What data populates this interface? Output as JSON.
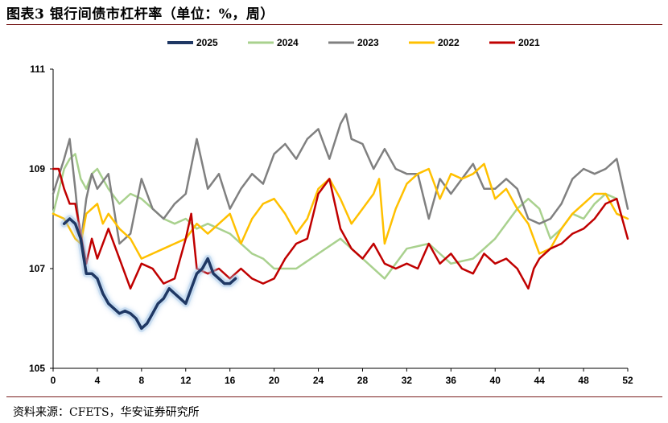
{
  "title": "图表3  银行间债市杠杆率（单位：%，周）",
  "source": "资料来源：CFETS，华安证券研究所",
  "chart_data": {
    "type": "line",
    "title": "图表3  银行间债市杠杆率（单位：%，周）",
    "xlabel": "",
    "ylabel": "",
    "xlim": [
      0,
      52
    ],
    "ylim": [
      105,
      111
    ],
    "x_ticks": [
      0,
      4,
      8,
      12,
      16,
      20,
      24,
      28,
      32,
      36,
      40,
      44,
      48,
      52
    ],
    "y_ticks": [
      105,
      107,
      109,
      111
    ],
    "grid": false,
    "legend_position": "top",
    "series": [
      {
        "name": "2025",
        "color": "#1f3864",
        "x": [
          1,
          1.5,
          2,
          2.5,
          3,
          3.5,
          4,
          4.5,
          5,
          5.5,
          6,
          6.5,
          7,
          7.5,
          8,
          8.5,
          9,
          9.5,
          10,
          10.5,
          11,
          11.5,
          12,
          12.5,
          13,
          13.5,
          14,
          14.5,
          15,
          15.5,
          16,
          16.5
        ],
        "y": [
          107.9,
          108.0,
          107.9,
          107.6,
          106.9,
          106.9,
          106.8,
          106.5,
          106.3,
          106.2,
          106.1,
          106.15,
          106.1,
          106.0,
          105.8,
          105.9,
          106.1,
          106.3,
          106.4,
          106.6,
          106.5,
          106.4,
          106.3,
          106.6,
          106.9,
          107.0,
          107.2,
          106.9,
          106.8,
          106.7,
          106.7,
          106.8
        ]
      },
      {
        "name": "2024",
        "color": "#a9d18e",
        "x": [
          0,
          1,
          1.5,
          2,
          2.5,
          3,
          3.5,
          4,
          5,
          6,
          7,
          8,
          9,
          10,
          11,
          12,
          13,
          14,
          15,
          16,
          17,
          18,
          19,
          20,
          22,
          24,
          26,
          28,
          30,
          32,
          34,
          36,
          38,
          40,
          42,
          43,
          44,
          45,
          46,
          47,
          48,
          49,
          50,
          51
        ],
        "y": [
          108.1,
          109.0,
          109.2,
          109.3,
          108.8,
          108.6,
          108.9,
          109.0,
          108.6,
          108.3,
          108.5,
          108.4,
          108.2,
          108.0,
          107.9,
          108.0,
          107.8,
          107.9,
          107.8,
          107.7,
          107.5,
          107.3,
          107.2,
          107.0,
          107.0,
          107.3,
          107.6,
          107.2,
          106.8,
          107.4,
          107.5,
          107.1,
          107.2,
          107.6,
          108.2,
          108.4,
          108.2,
          107.6,
          107.8,
          108.1,
          108.0,
          108.3,
          108.5,
          108.4
        ]
      },
      {
        "name": "2023",
        "color": "#808080",
        "x": [
          0,
          1,
          1.5,
          2,
          2.5,
          3,
          3.5,
          4,
          5,
          6,
          7,
          8,
          9,
          10,
          11,
          12,
          13,
          14,
          15,
          16,
          17,
          18,
          19,
          20,
          21,
          22,
          23,
          24,
          25,
          26,
          26.5,
          27,
          28,
          29,
          30,
          31,
          32,
          33,
          34,
          35,
          36,
          37,
          38,
          39,
          40,
          41,
          42,
          43,
          44,
          45,
          46,
          47,
          48,
          49,
          50,
          51,
          52
        ],
        "y": [
          108.5,
          109.2,
          109.6,
          108.6,
          107.5,
          108.4,
          108.9,
          108.6,
          108.9,
          107.5,
          107.7,
          108.8,
          108.2,
          108.0,
          108.3,
          108.5,
          109.6,
          108.6,
          108.9,
          108.2,
          108.6,
          108.9,
          108.7,
          109.3,
          109.5,
          109.2,
          109.6,
          109.8,
          109.2,
          109.9,
          110.1,
          109.6,
          109.5,
          109.0,
          109.4,
          109.0,
          108.9,
          108.9,
          108.0,
          108.8,
          108.5,
          108.8,
          109.1,
          108.6,
          108.6,
          108.8,
          108.6,
          108.0,
          107.9,
          108.0,
          108.3,
          108.8,
          109.0,
          108.9,
          109.0,
          109.2,
          108.2
        ]
      },
      {
        "name": "2022",
        "color": "#ffc000",
        "x": [
          0,
          1,
          2,
          2.5,
          3,
          4,
          4.5,
          5,
          6,
          7,
          8,
          9,
          10,
          11,
          12,
          13,
          14,
          15,
          16,
          17,
          18,
          19,
          20,
          21,
          22,
          23,
          24,
          25,
          26,
          27,
          28,
          29,
          29.5,
          30,
          31,
          32,
          33,
          34,
          35,
          36,
          37,
          38,
          39,
          40,
          41,
          42,
          43,
          44,
          45,
          46,
          47,
          48,
          49,
          50,
          51,
          52
        ],
        "y": [
          108.1,
          108.0,
          107.6,
          107.5,
          108.1,
          108.3,
          107.9,
          108.1,
          107.8,
          107.6,
          107.2,
          107.3,
          107.4,
          107.5,
          107.6,
          107.9,
          107.7,
          107.9,
          108.1,
          107.5,
          108.0,
          108.3,
          108.4,
          108.1,
          107.7,
          108.0,
          108.6,
          108.8,
          108.4,
          107.9,
          108.2,
          108.5,
          108.8,
          107.5,
          108.2,
          108.7,
          108.9,
          109.0,
          108.4,
          108.9,
          108.8,
          108.9,
          109.1,
          108.4,
          108.6,
          108.2,
          107.9,
          107.3,
          107.4,
          107.8,
          108.1,
          108.3,
          108.5,
          108.5,
          108.1,
          108.0
        ]
      },
      {
        "name": "2021",
        "color": "#c00000",
        "x": [
          0,
          0.5,
          1,
          1.5,
          2,
          3,
          3.5,
          4,
          5,
          6,
          7,
          8,
          9,
          10,
          11,
          12,
          12.5,
          13,
          14,
          15,
          16,
          17,
          18,
          19,
          20,
          21,
          22,
          23,
          24,
          25,
          26,
          27,
          28,
          29,
          30,
          31,
          32,
          33,
          34,
          35,
          36,
          37,
          38,
          39,
          40,
          41,
          42,
          43,
          43.5,
          44,
          45,
          46,
          47,
          48,
          49,
          50,
          51,
          52
        ],
        "y": [
          109.0,
          109.0,
          108.6,
          108.3,
          108.3,
          107.1,
          107.6,
          107.2,
          107.8,
          107.2,
          106.6,
          107.1,
          107.0,
          106.7,
          106.8,
          107.6,
          108.1,
          107.0,
          106.9,
          107.0,
          106.8,
          107.0,
          106.8,
          106.7,
          106.8,
          107.2,
          107.5,
          107.6,
          108.5,
          108.8,
          107.8,
          107.4,
          107.2,
          107.5,
          107.1,
          107.0,
          107.1,
          107.0,
          107.5,
          107.1,
          107.3,
          107.0,
          106.9,
          107.3,
          107.1,
          107.2,
          107.0,
          106.6,
          107.0,
          107.2,
          107.4,
          107.5,
          107.7,
          107.8,
          108.0,
          108.3,
          108.4,
          107.6
        ]
      }
    ]
  }
}
